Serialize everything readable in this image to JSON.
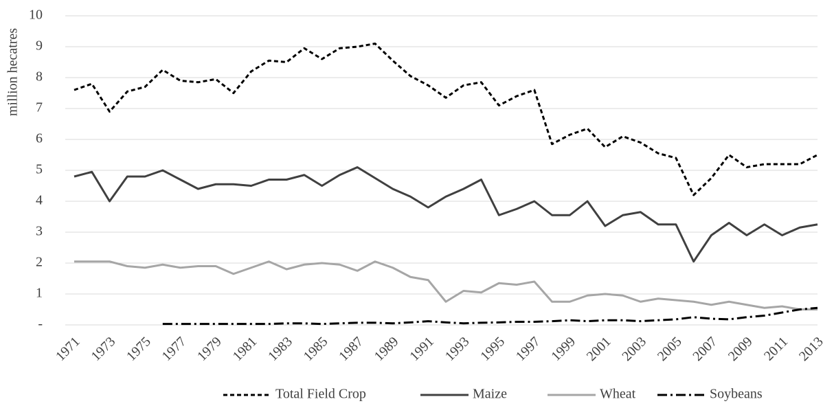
{
  "chart_data": {
    "type": "line",
    "y_label": "million hecatres",
    "categories": [
      "1971",
      null,
      "1973",
      null,
      "1975",
      null,
      "1977",
      null,
      "1979",
      null,
      "1981",
      null,
      "1983",
      null,
      "1985",
      null,
      "1987",
      null,
      "1989",
      null,
      "1991",
      null,
      "1993",
      null,
      "1995",
      null,
      "1997",
      null,
      "1999",
      null,
      "2001",
      null,
      "2003",
      null,
      "2005",
      null,
      "2007",
      null,
      "2009",
      null,
      "2011",
      null,
      "2013"
    ],
    "series": [
      {
        "name": "Total Field Crop",
        "color": "#000000",
        "style": "dashed",
        "values": [
          7.6,
          7.8,
          6.9,
          7.55,
          7.7,
          8.25,
          7.9,
          7.85,
          7.95,
          7.5,
          8.2,
          8.55,
          8.5,
          8.95,
          8.6,
          8.95,
          9.0,
          9.1,
          8.55,
          8.05,
          7.75,
          7.35,
          7.75,
          7.85,
          7.1,
          7.4,
          7.6,
          5.85,
          6.15,
          6.35,
          5.75,
          6.1,
          5.9,
          5.55,
          5.4,
          4.2,
          4.75,
          5.5,
          5.1,
          5.2,
          5.2,
          5.2,
          5.5
        ]
      },
      {
        "name": "Maize",
        "color": "#404040",
        "style": "solid",
        "values": [
          4.8,
          4.95,
          4.0,
          4.8,
          4.8,
          5.0,
          4.7,
          4.4,
          4.55,
          4.55,
          4.5,
          4.7,
          4.7,
          4.85,
          4.5,
          4.85,
          5.1,
          4.75,
          4.4,
          4.15,
          3.8,
          4.15,
          4.4,
          4.7,
          3.55,
          3.75,
          4.0,
          3.55,
          3.55,
          4.0,
          3.2,
          3.55,
          3.65,
          3.25,
          3.25,
          2.05,
          2.9,
          3.3,
          2.9,
          3.25,
          2.9,
          3.15,
          3.25
        ]
      },
      {
        "name": "Wheat",
        "color": "#a6a6a6",
        "style": "solid",
        "values": [
          2.05,
          2.05,
          2.05,
          1.9,
          1.85,
          1.95,
          1.85,
          1.9,
          1.9,
          1.65,
          1.85,
          2.05,
          1.8,
          1.95,
          2.0,
          1.95,
          1.75,
          2.05,
          1.85,
          1.55,
          1.45,
          0.75,
          1.1,
          1.05,
          1.35,
          1.3,
          1.4,
          0.75,
          0.75,
          0.95,
          1.0,
          0.95,
          0.75,
          0.85,
          0.8,
          0.75,
          0.65,
          0.75,
          0.65,
          0.55,
          0.6,
          0.5,
          0.5
        ]
      },
      {
        "name": "Soybeans",
        "color": "#000000",
        "style": "dashdot",
        "values": [
          null,
          null,
          null,
          null,
          null,
          0.03,
          0.03,
          0.03,
          0.03,
          0.03,
          0.03,
          0.03,
          0.05,
          0.05,
          0.03,
          0.05,
          0.07,
          0.07,
          0.05,
          0.08,
          0.12,
          0.08,
          0.05,
          0.07,
          0.08,
          0.1,
          0.1,
          0.12,
          0.15,
          0.12,
          0.15,
          0.15,
          0.12,
          0.15,
          0.18,
          0.25,
          0.2,
          0.18,
          0.25,
          0.3,
          0.4,
          0.5,
          0.55
        ]
      }
    ],
    "ylim": [
      0,
      10
    ],
    "yticks": [
      {
        "value": 0,
        "label": "-"
      },
      1,
      2,
      3,
      4,
      5,
      6,
      7,
      8,
      9,
      10
    ],
    "grid": true,
    "legend": "bottom"
  }
}
